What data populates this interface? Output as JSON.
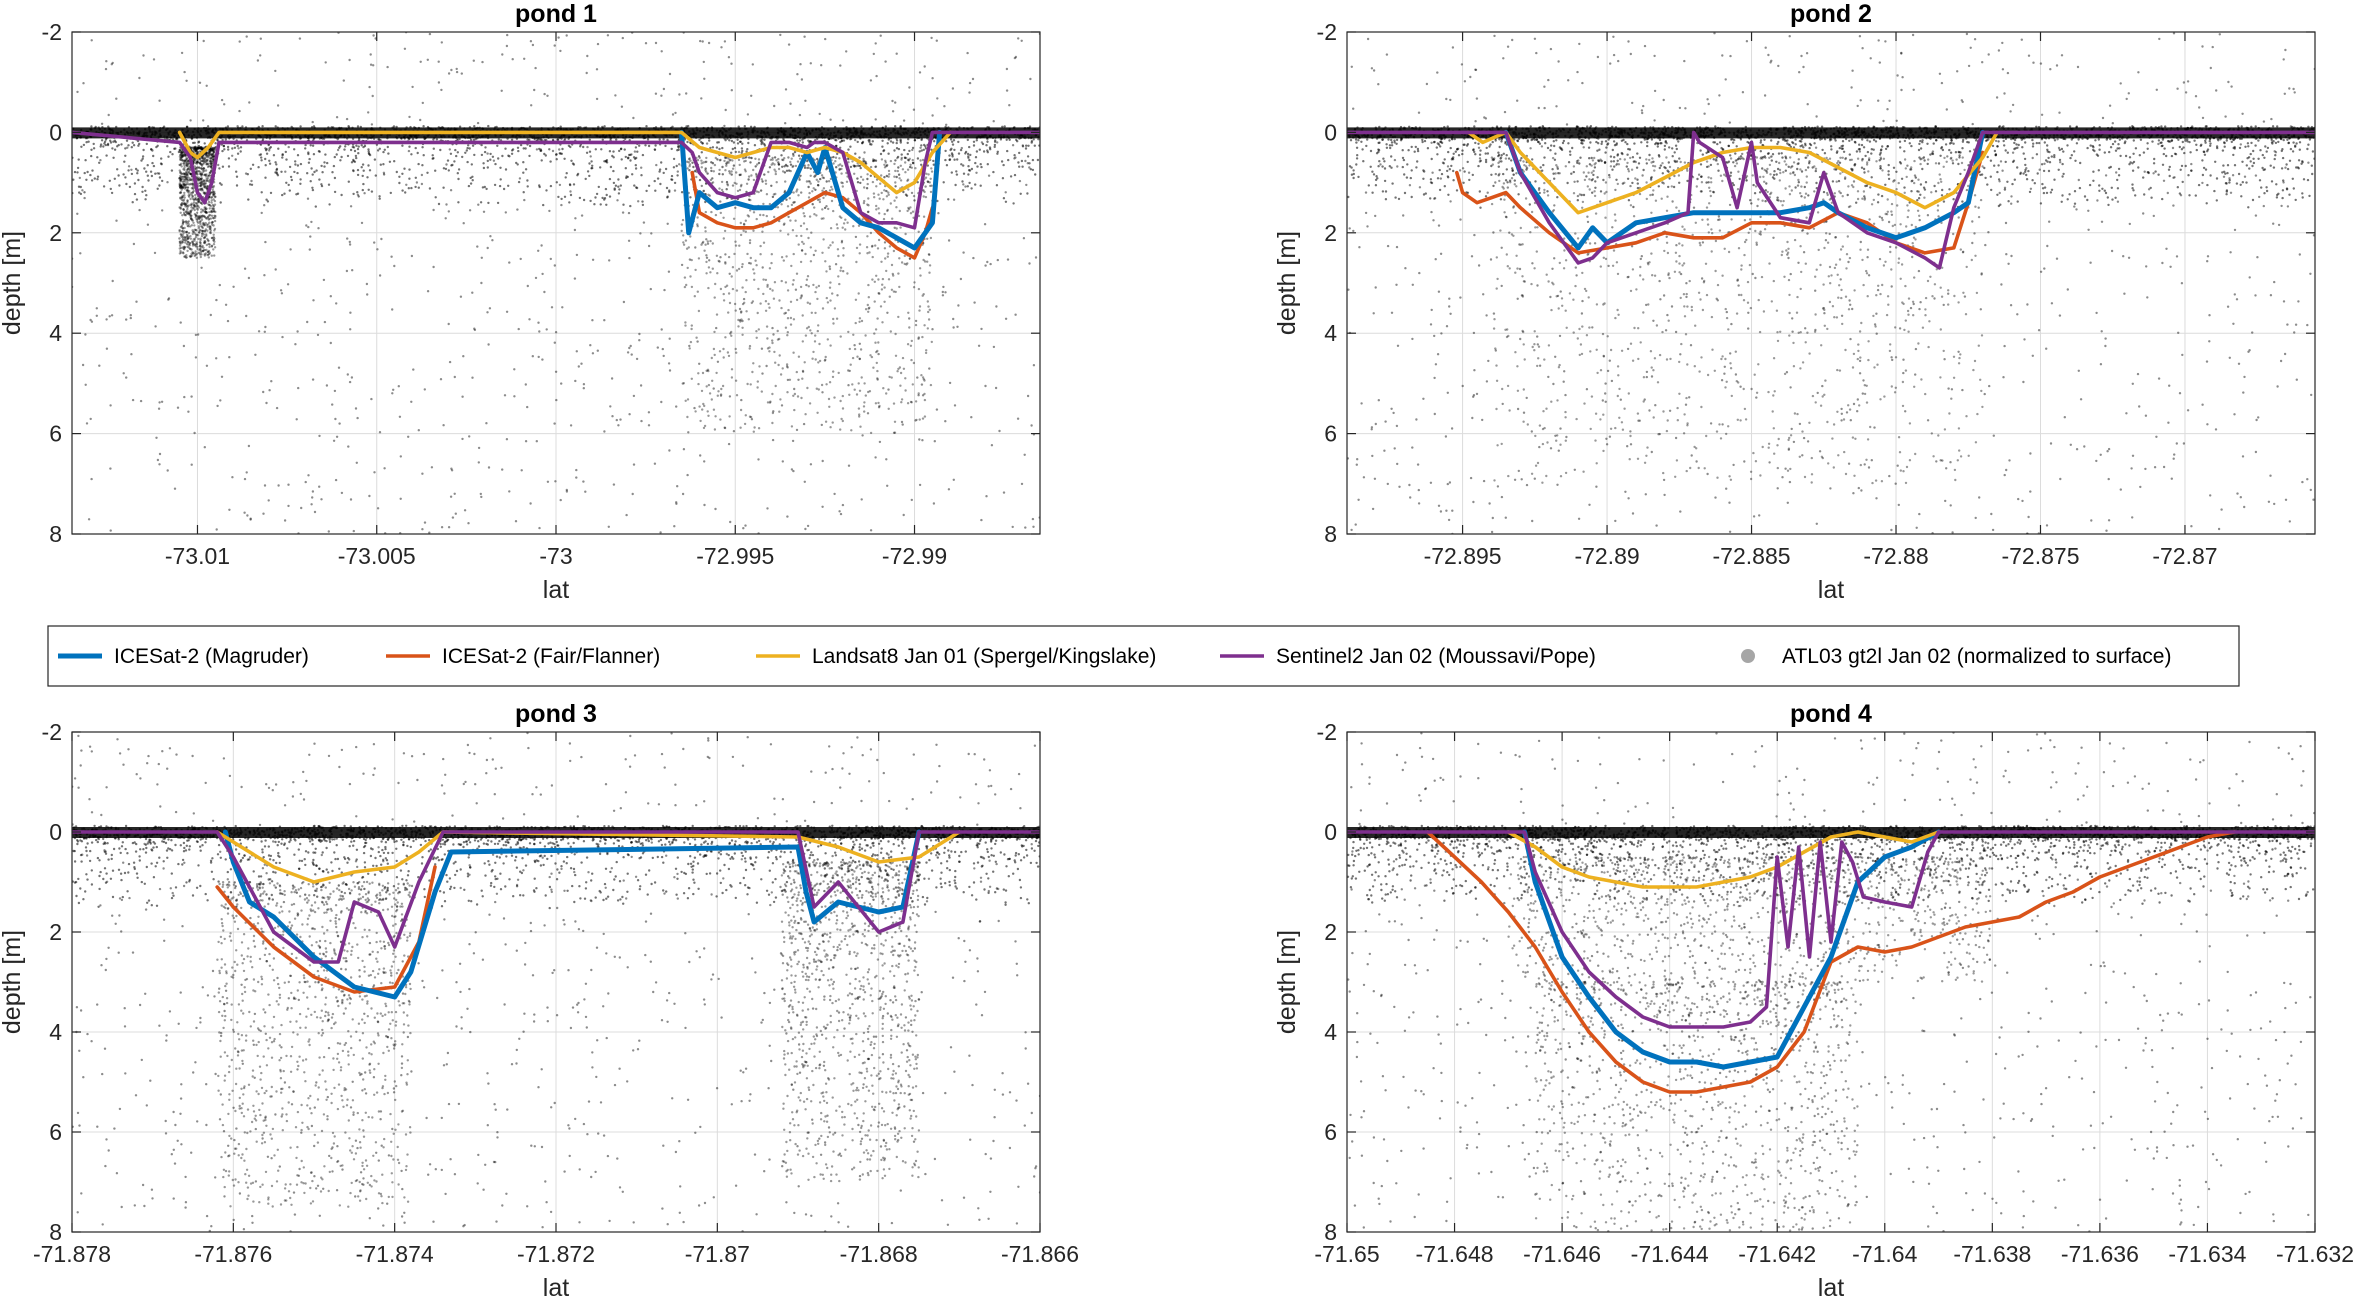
{
  "colors": {
    "magruder": "#0072BD",
    "fair": "#D95319",
    "landsat": "#EDB120",
    "sentinel": "#7E2F8E",
    "photons": "#000000",
    "grid": "#dcdcdc"
  },
  "legend": {
    "items": [
      {
        "key": "magruder",
        "label": "ICESat-2 (Magruder)",
        "marker": "line"
      },
      {
        "key": "fair",
        "label": "ICESat-2 (Fair/Flanner)",
        "marker": "line"
      },
      {
        "key": "landsat",
        "label": "Landsat8 Jan 01 (Spergel/Kingslake)",
        "marker": "line"
      },
      {
        "key": "sentinel",
        "label": "Sentinel2 Jan 02 (Moussavi/Pope)",
        "marker": "line"
      },
      {
        "key": "photons",
        "label": "ATL03 gt2l Jan 02 (normalized to surface)",
        "marker": "dot"
      }
    ]
  },
  "chart_data": [
    {
      "type": "line",
      "title": "pond 1",
      "xlabel": "lat",
      "ylabel": "depth [m]",
      "xlim": [
        -73.0135,
        -72.9865
      ],
      "ylim": [
        -2,
        8
      ],
      "y_reversed": true,
      "grid": true,
      "xticks": [
        -73.01,
        -73.005,
        -73,
        -72.995,
        -72.99
      ],
      "xtick_labels": [
        "-73.01",
        "-73.005",
        "-73",
        "-72.995",
        "-72.99"
      ],
      "yticks": [
        -2,
        0,
        2,
        4,
        6,
        8
      ],
      "ytick_labels": [
        "-2",
        "0",
        "2",
        "4",
        "6",
        "8"
      ],
      "photon_clusters": [
        {
          "x": [
            -73.0135,
            -72.9865
          ],
          "depth": [
            0,
            0.3
          ]
        },
        {
          "x": [
            -72.9965,
            -72.9895
          ],
          "depth": [
            0.5,
            6
          ]
        },
        {
          "x": [
            -73.0105,
            -73.0095
          ],
          "depth": [
            0.3,
            2.5
          ]
        }
      ],
      "series": [
        {
          "key": "magruder",
          "x": [
            -72.9965,
            -72.9963,
            -72.996,
            -72.9955,
            -72.995,
            -72.9945,
            -72.994,
            -72.9935,
            -72.993,
            -72.9927,
            -72.9925,
            -72.992,
            -72.9915,
            -72.991,
            -72.9905,
            -72.99,
            -72.9895,
            -72.9893
          ],
          "values": [
            0,
            2.0,
            1.2,
            1.5,
            1.4,
            1.5,
            1.5,
            1.2,
            0.4,
            0.8,
            0.3,
            1.5,
            1.8,
            1.9,
            2.1,
            2.3,
            1.8,
            0
          ]
        },
        {
          "key": "fair",
          "x": [
            -72.9962,
            -72.996,
            -72.9955,
            -72.995,
            -72.9945,
            -72.994,
            -72.9935,
            -72.993,
            -72.9925,
            -72.992,
            -72.9915,
            -72.991,
            -72.9905,
            -72.99,
            -72.9897,
            -72.9895
          ],
          "values": [
            0.8,
            1.6,
            1.8,
            1.9,
            1.9,
            1.8,
            1.6,
            1.4,
            1.2,
            1.3,
            1.6,
            2.0,
            2.3,
            2.5,
            2.0,
            1.5
          ]
        },
        {
          "key": "landsat",
          "x": [
            -73.0105,
            -73.0102,
            -73.01,
            -73.0097,
            -73.0094,
            -72.9965,
            -72.996,
            -72.9955,
            -72.995,
            -72.9945,
            -72.994,
            -72.9935,
            -72.993,
            -72.9925,
            -72.992,
            -72.9915,
            -72.991,
            -72.9905,
            -72.99,
            -72.9895,
            -72.989
          ],
          "values": [
            0,
            0.4,
            0.5,
            0.3,
            0,
            0,
            0.3,
            0.4,
            0.5,
            0.4,
            0.3,
            0.3,
            0.4,
            0.3,
            0.4,
            0.6,
            0.9,
            1.2,
            1.0,
            0.4,
            0
          ]
        },
        {
          "key": "sentinel",
          "x": [
            -73.0135,
            -73.0105,
            -73.0102,
            -73.01,
            -73.0098,
            -73.0096,
            -73.0094,
            -72.9965,
            -72.9962,
            -72.996,
            -72.9955,
            -72.995,
            -72.9945,
            -72.994,
            -72.9935,
            -72.993,
            -72.9928,
            -72.9925,
            -72.992,
            -72.9915,
            -72.991,
            -72.9905,
            -72.99,
            -72.9897,
            -72.9895,
            -72.9865
          ],
          "values": [
            0,
            0.2,
            0.5,
            1.2,
            1.4,
            1.0,
            0.2,
            0.2,
            0.4,
            0.8,
            1.2,
            1.3,
            1.2,
            0.2,
            0.2,
            0.3,
            0.2,
            0.2,
            0.4,
            1.6,
            1.8,
            1.8,
            1.9,
            0.6,
            0,
            0
          ]
        }
      ]
    },
    {
      "type": "line",
      "title": "pond 2",
      "xlabel": "lat",
      "ylabel": "depth [m]",
      "xlim": [
        -72.899,
        -72.8655
      ],
      "ylim": [
        -2,
        8
      ],
      "y_reversed": true,
      "grid": true,
      "xticks": [
        -72.895,
        -72.89,
        -72.885,
        -72.88,
        -72.875,
        -72.87
      ],
      "xtick_labels": [
        "-72.895",
        "-72.89",
        "-72.885",
        "-72.88",
        "-72.875",
        "-72.87"
      ],
      "yticks": [
        -2,
        0,
        2,
        4,
        6,
        8
      ],
      "ytick_labels": [
        "-2",
        "0",
        "2",
        "4",
        "6",
        "8"
      ],
      "photon_clusters": [
        {
          "x": [
            -72.899,
            -72.8655
          ],
          "depth": [
            0,
            0.3
          ]
        },
        {
          "x": [
            -72.894,
            -72.877
          ],
          "depth": [
            0.5,
            7
          ]
        }
      ],
      "series": [
        {
          "key": "magruder",
          "x": [
            -72.8935,
            -72.893,
            -72.892,
            -72.891,
            -72.8905,
            -72.89,
            -72.889,
            -72.888,
            -72.887,
            -72.886,
            -72.885,
            -72.884,
            -72.883,
            -72.8825,
            -72.882,
            -72.881,
            -72.88,
            -72.879,
            -72.878,
            -72.8775,
            -72.877
          ],
          "values": [
            0,
            0.8,
            1.6,
            2.3,
            1.9,
            2.2,
            1.8,
            1.7,
            1.6,
            1.6,
            1.6,
            1.6,
            1.5,
            1.4,
            1.6,
            1.9,
            2.1,
            1.9,
            1.6,
            1.4,
            0
          ]
        },
        {
          "key": "fair",
          "x": [
            -72.8952,
            -72.895,
            -72.8945,
            -72.894,
            -72.8935,
            -72.893,
            -72.892,
            -72.891,
            -72.89,
            -72.889,
            -72.888,
            -72.887,
            -72.886,
            -72.885,
            -72.884,
            -72.883,
            -72.882,
            -72.881,
            -72.88,
            -72.879,
            -72.878,
            -72.8775,
            -72.877
          ],
          "values": [
            0.8,
            1.2,
            1.4,
            1.3,
            1.2,
            1.5,
            2.0,
            2.4,
            2.3,
            2.2,
            2.0,
            2.1,
            2.1,
            1.8,
            1.8,
            1.9,
            1.6,
            1.8,
            2.2,
            2.4,
            2.3,
            1.4,
            0.4
          ]
        },
        {
          "key": "landsat",
          "x": [
            -72.8948,
            -72.8943,
            -72.8935,
            -72.893,
            -72.892,
            -72.891,
            -72.89,
            -72.889,
            -72.888,
            -72.887,
            -72.886,
            -72.885,
            -72.884,
            -72.883,
            -72.882,
            -72.881,
            -72.88,
            -72.879,
            -72.878,
            -72.877,
            -72.8765
          ],
          "values": [
            0,
            0.2,
            0,
            0.4,
            1.0,
            1.6,
            1.4,
            1.2,
            0.9,
            0.6,
            0.4,
            0.3,
            0.3,
            0.4,
            0.7,
            1.0,
            1.2,
            1.5,
            1.2,
            0.5,
            0
          ]
        },
        {
          "key": "sentinel",
          "x": [
            -72.899,
            -72.8935,
            -72.893,
            -72.892,
            -72.891,
            -72.8905,
            -72.89,
            -72.889,
            -72.888,
            -72.8872,
            -72.887,
            -72.8868,
            -72.886,
            -72.8855,
            -72.885,
            -72.8848,
            -72.884,
            -72.883,
            -72.8825,
            -72.882,
            -72.881,
            -72.88,
            -72.879,
            -72.8785,
            -72.878,
            -72.8775,
            -72.877,
            -72.8655
          ],
          "values": [
            0,
            0,
            0.8,
            1.8,
            2.6,
            2.5,
            2.2,
            2.0,
            1.8,
            1.6,
            0,
            0.2,
            0.5,
            1.5,
            0.2,
            1.0,
            1.7,
            1.8,
            0.8,
            1.6,
            2.0,
            2.2,
            2.5,
            2.7,
            1.5,
            0.8,
            0,
            0
          ]
        }
      ]
    },
    {
      "type": "line",
      "title": "pond 3",
      "xlabel": "lat",
      "ylabel": "depth [m]",
      "xlim": [
        -71.878,
        -71.866
      ],
      "ylim": [
        -2,
        8
      ],
      "y_reversed": true,
      "grid": true,
      "xticks": [
        -71.878,
        -71.876,
        -71.874,
        -71.872,
        -71.87,
        -71.868,
        -71.866
      ],
      "xtick_labels": [
        "-71.878",
        "-71.876",
        "-71.874",
        "-71.872",
        "-71.87",
        "-71.868",
        "-71.866"
      ],
      "yticks": [
        -2,
        0,
        2,
        4,
        6,
        8
      ],
      "ytick_labels": [
        "-2",
        "0",
        "2",
        "4",
        "6",
        "8"
      ],
      "photon_clusters": [
        {
          "x": [
            -71.878,
            -71.866
          ],
          "depth": [
            0,
            0.3
          ]
        },
        {
          "x": [
            -71.8762,
            -71.8738
          ],
          "depth": [
            1,
            7.5
          ]
        },
        {
          "x": [
            -71.8692,
            -71.8675
          ],
          "depth": [
            0.6,
            7
          ]
        }
      ],
      "series": [
        {
          "key": "magruder",
          "x": [
            -71.8761,
            -71.876,
            -71.8758,
            -71.8755,
            -71.875,
            -71.8745,
            -71.874,
            -71.8738,
            -71.8735,
            -71.8733,
            -71.869,
            -71.8689,
            -71.8688,
            -71.8685,
            -71.868,
            -71.8677,
            -71.8675
          ],
          "values": [
            0,
            0.6,
            1.4,
            1.7,
            2.5,
            3.1,
            3.3,
            2.8,
            1.2,
            0.4,
            0.3,
            1.2,
            1.8,
            1.4,
            1.6,
            1.5,
            0
          ]
        },
        {
          "key": "fair",
          "x": [
            -71.8762,
            -71.876,
            -71.8755,
            -71.875,
            -71.8745,
            -71.874,
            -71.8737,
            -71.8735
          ],
          "values": [
            1.1,
            1.5,
            2.3,
            2.9,
            3.2,
            3.1,
            2.2,
            0.7
          ]
        },
        {
          "key": "landsat",
          "x": [
            -71.8762,
            -71.876,
            -71.8755,
            -71.875,
            -71.8745,
            -71.874,
            -71.8737,
            -71.8734,
            -71.869,
            -71.8685,
            -71.868,
            -71.8675,
            -71.867
          ],
          "values": [
            0,
            0.2,
            0.7,
            1.0,
            0.8,
            0.7,
            0.4,
            0,
            0.1,
            0.3,
            0.6,
            0.5,
            0
          ]
        },
        {
          "key": "sentinel",
          "x": [
            -71.878,
            -71.8762,
            -71.876,
            -71.8755,
            -71.875,
            -71.8747,
            -71.8745,
            -71.8742,
            -71.874,
            -71.8737,
            -71.8734,
            -71.869,
            -71.8688,
            -71.8685,
            -71.868,
            -71.8677,
            -71.8675,
            -71.866
          ],
          "values": [
            0,
            0,
            0.5,
            2.0,
            2.6,
            2.6,
            1.4,
            1.6,
            2.3,
            1.0,
            0,
            0,
            1.5,
            1.0,
            2.0,
            1.8,
            0,
            0
          ]
        }
      ]
    },
    {
      "type": "line",
      "title": "pond 4",
      "xlabel": "lat",
      "ylabel": "depth [m]",
      "xlim": [
        -71.65,
        -71.632
      ],
      "ylim": [
        -2,
        8
      ],
      "y_reversed": true,
      "grid": true,
      "xticks": [
        -71.65,
        -71.648,
        -71.646,
        -71.644,
        -71.642,
        -71.64,
        -71.638,
        -71.636,
        -71.634,
        -71.632
      ],
      "xtick_labels": [
        "-71.65",
        "-71.648",
        "-71.646",
        "-71.644",
        "-71.642",
        "-71.64",
        "-71.638",
        "-71.636",
        "-71.634",
        "-71.632"
      ],
      "yticks": [
        -2,
        0,
        2,
        4,
        6,
        8
      ],
      "ytick_labels": [
        "-2",
        "0",
        "2",
        "4",
        "6",
        "8"
      ],
      "photon_clusters": [
        {
          "x": [
            -71.65,
            -71.632
          ],
          "depth": [
            0,
            0.3
          ]
        },
        {
          "x": [
            -71.6465,
            -71.6405
          ],
          "depth": [
            3,
            8
          ]
        },
        {
          "x": [
            -71.647,
            -71.638
          ],
          "depth": [
            0.5,
            3
          ]
        }
      ],
      "series": [
        {
          "key": "magruder",
          "x": [
            -71.6467,
            -71.6465,
            -71.646,
            -71.6455,
            -71.645,
            -71.6445,
            -71.644,
            -71.6435,
            -71.643,
            -71.6425,
            -71.642,
            -71.6415,
            -71.641,
            -71.6405,
            -71.64,
            -71.6395,
            -71.639
          ],
          "values": [
            0,
            1.0,
            2.5,
            3.3,
            4.0,
            4.4,
            4.6,
            4.6,
            4.7,
            4.6,
            4.5,
            3.5,
            2.5,
            1.0,
            0.5,
            0.3,
            0
          ]
        },
        {
          "key": "fair",
          "x": [
            -71.6485,
            -71.648,
            -71.6475,
            -71.647,
            -71.6465,
            -71.646,
            -71.6455,
            -71.645,
            -71.6445,
            -71.644,
            -71.6435,
            -71.643,
            -71.6425,
            -71.642,
            -71.6415,
            -71.641,
            -71.6405,
            -71.64,
            -71.6395,
            -71.639,
            -71.6385,
            -71.638,
            -71.6375,
            -71.637,
            -71.6365,
            -71.636,
            -71.6355,
            -71.635,
            -71.6345,
            -71.634,
            -71.6335
          ],
          "values": [
            0,
            0.5,
            1.0,
            1.6,
            2.3,
            3.2,
            4.0,
            4.6,
            5.0,
            5.2,
            5.2,
            5.1,
            5.0,
            4.7,
            4.0,
            2.6,
            2.3,
            2.4,
            2.3,
            2.1,
            1.9,
            1.8,
            1.7,
            1.4,
            1.2,
            0.9,
            0.7,
            0.5,
            0.3,
            0.1,
            0
          ]
        },
        {
          "key": "landsat",
          "x": [
            -71.647,
            -71.6465,
            -71.646,
            -71.6455,
            -71.645,
            -71.6445,
            -71.644,
            -71.6435,
            -71.643,
            -71.6425,
            -71.642,
            -71.6415,
            -71.641,
            -71.6405,
            -71.64,
            -71.6395,
            -71.639
          ],
          "values": [
            0,
            0.3,
            0.7,
            0.9,
            1.0,
            1.1,
            1.1,
            1.1,
            1.0,
            0.9,
            0.7,
            0.4,
            0.1,
            0,
            0.1,
            0.2,
            0
          ]
        },
        {
          "key": "sentinel",
          "x": [
            -71.65,
            -71.6467,
            -71.6465,
            -71.646,
            -71.6455,
            -71.645,
            -71.6445,
            -71.644,
            -71.6435,
            -71.643,
            -71.6425,
            -71.6422,
            -71.642,
            -71.6418,
            -71.6416,
            -71.6414,
            -71.6412,
            -71.641,
            -71.6408,
            -71.6406,
            -71.6404,
            -71.64,
            -71.6395,
            -71.6392,
            -71.639,
            -71.632
          ],
          "values": [
            0,
            0,
            0.8,
            2.0,
            2.8,
            3.3,
            3.7,
            3.9,
            3.9,
            3.9,
            3.8,
            3.5,
            0.5,
            2.3,
            0.3,
            2.5,
            0.2,
            2.2,
            0.2,
            0.6,
            1.3,
            1.4,
            1.5,
            0.4,
            0,
            0
          ]
        }
      ]
    }
  ]
}
